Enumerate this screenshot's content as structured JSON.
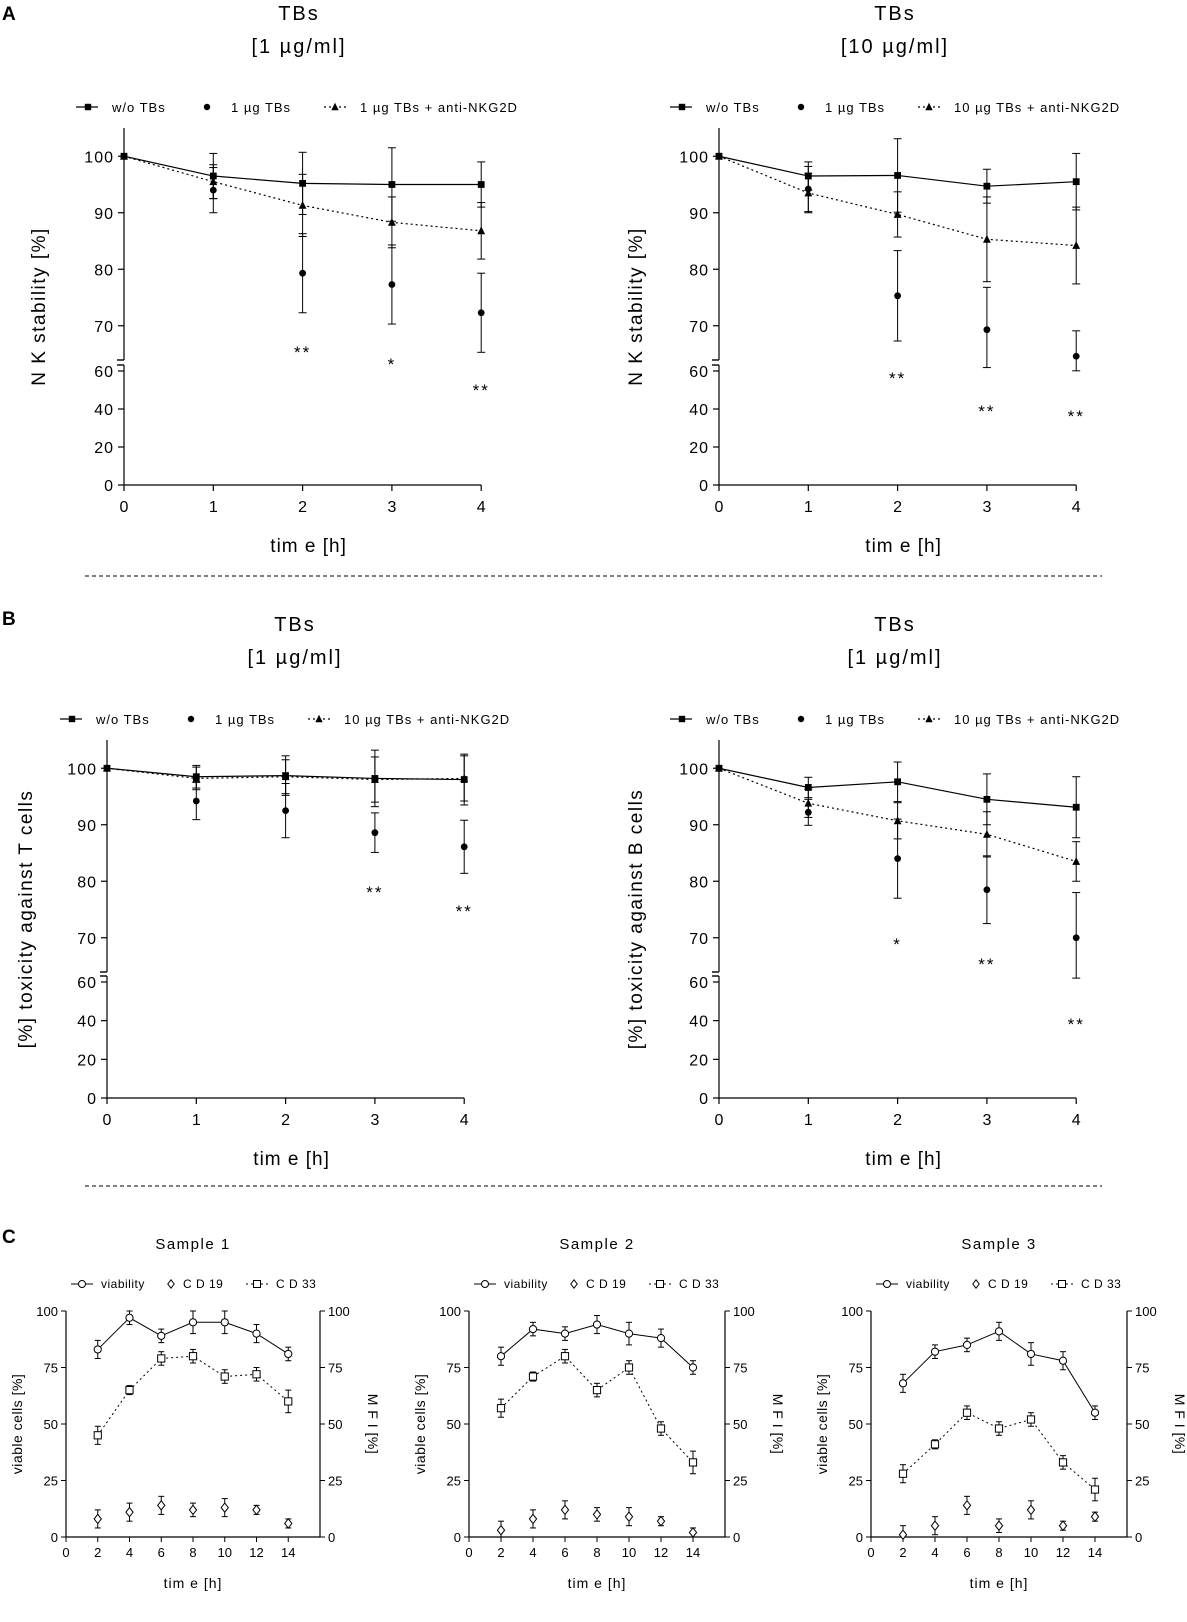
{
  "figure": {
    "panel_labels": [
      "A",
      "B",
      "C"
    ]
  },
  "chart_data": [
    {
      "id": "A1",
      "type": "line",
      "title": [
        "TBs",
        "[1 µg/ml]"
      ],
      "xlabel": "tim e [h]",
      "ylabel": "N K stability [%]",
      "x": [
        0,
        1,
        2,
        3,
        4
      ],
      "x_ticks": [
        "0",
        "1",
        "2",
        "3",
        "4"
      ],
      "y_ticks_upper": [
        "100",
        "90",
        "80",
        "70"
      ],
      "y_ticks_lower": [
        "60",
        "40",
        "20",
        "0"
      ],
      "ylim_upper": [
        65,
        105
      ],
      "ylim_lower": [
        0,
        60
      ],
      "legend": [
        "w/o TBs",
        "1 µg TBs",
        "1 µg TBs + anti-NKG2D"
      ],
      "series": [
        {
          "name": "w/o TBs",
          "marker": "square",
          "line": "solid",
          "values": [
            100,
            96.5,
            95.2,
            95,
            95
          ],
          "errors": [
            0,
            4,
            5.5,
            6.5,
            4
          ]
        },
        {
          "name": "1 µg TBs",
          "marker": "circle",
          "line": "none",
          "values": [
            100,
            94,
            79.3,
            77.3,
            72.3
          ],
          "errors": [
            0,
            4,
            7,
            7,
            7
          ]
        },
        {
          "name": "1 µg TBs + anti-NKG2D",
          "marker": "triangle",
          "line": "dotted",
          "values": [
            100,
            95.5,
            91.3,
            88.3,
            86.8
          ],
          "errors": [
            0,
            3,
            5.5,
            4.5,
            5
          ]
        }
      ],
      "annotations": [
        {
          "x": 2,
          "text": "**"
        },
        {
          "x": 3,
          "text": "*"
        },
        {
          "x": 4,
          "text": "**"
        }
      ]
    },
    {
      "id": "A2",
      "type": "line",
      "title": [
        "TBs",
        "[10 µg/ml]"
      ],
      "xlabel": "tim e [h]",
      "ylabel": "N K stability [%]",
      "x": [
        0,
        1,
        2,
        3,
        4
      ],
      "x_ticks": [
        "0",
        "1",
        "2",
        "3",
        "4"
      ],
      "y_ticks_upper": [
        "100",
        "90",
        "80",
        "70"
      ],
      "y_ticks_lower": [
        "60",
        "40",
        "20",
        "0"
      ],
      "ylim_upper": [
        65,
        105
      ],
      "ylim_lower": [
        0,
        60
      ],
      "legend": [
        "w/o TBs",
        "1 µg TBs",
        "10 µg TBs + anti-NKG2D"
      ],
      "series": [
        {
          "name": "w/o TBs",
          "marker": "square",
          "line": "solid",
          "values": [
            100,
            96.5,
            96.6,
            94.7,
            95.5
          ],
          "errors": [
            0,
            2.5,
            6.5,
            3,
            5
          ]
        },
        {
          "name": "1 µg TBs",
          "marker": "circle",
          "line": "none",
          "values": [
            100,
            94.2,
            75.3,
            69.3,
            64.6
          ],
          "errors": [
            0,
            4,
            8,
            7.5,
            4.5
          ]
        },
        {
          "name": "10 µg TBs + anti-NKG2D",
          "marker": "triangle",
          "line": "dotted",
          "values": [
            100,
            93.5,
            89.7,
            85.3,
            84.2
          ],
          "errors": [
            0,
            3.5,
            4,
            7.5,
            6.8
          ]
        }
      ],
      "annotations": [
        {
          "x": 2,
          "text": "**"
        },
        {
          "x": 3,
          "text": "**"
        },
        {
          "x": 4,
          "text": "**"
        }
      ]
    },
    {
      "id": "B1",
      "type": "line",
      "title": [
        "TBs",
        "[1 µg/ml]"
      ],
      "xlabel": "tim e [h]",
      "ylabel": "[%] toxicity against T cells",
      "x": [
        0,
        1,
        2,
        3,
        4
      ],
      "x_ticks": [
        "0",
        "1",
        "2",
        "3",
        "4"
      ],
      "y_ticks_upper": [
        "100",
        "90",
        "80",
        "70"
      ],
      "y_ticks_lower": [
        "60",
        "40",
        "20",
        "0"
      ],
      "ylim_upper": [
        65,
        105
      ],
      "ylim_lower": [
        0,
        60
      ],
      "legend": [
        "w/o TBs",
        "1 µg TBs",
        "10 µg TBs + anti-NKG2D"
      ],
      "series": [
        {
          "name": "w/o TBs",
          "marker": "square",
          "line": "solid",
          "values": [
            100,
            98.5,
            98.7,
            98.2,
            98
          ],
          "errors": [
            0,
            2,
            3.5,
            5,
            4.5
          ]
        },
        {
          "name": "1 µg TBs",
          "marker": "circle",
          "line": "none",
          "values": [
            100,
            94.2,
            92.5,
            88.6,
            86.1
          ],
          "errors": [
            0,
            3.3,
            4.8,
            3.5,
            4.7
          ]
        },
        {
          "name": "10 µg TBs + anti-NKG2D",
          "marker": "triangle",
          "line": "dotted",
          "values": [
            100,
            98.2,
            98.5,
            98,
            98.2
          ],
          "errors": [
            0,
            2,
            3,
            4,
            4
          ]
        }
      ],
      "annotations": [
        {
          "x": 3,
          "text": "**"
        },
        {
          "x": 4,
          "text": "**"
        }
      ]
    },
    {
      "id": "B2",
      "type": "line",
      "title": [
        "TBs",
        "[1 µg/ml]"
      ],
      "xlabel": "tim e [h]",
      "ylabel": "[%] toxicity against B cells",
      "x": [
        0,
        1,
        2,
        3,
        4
      ],
      "x_ticks": [
        "0",
        "1",
        "2",
        "3",
        "4"
      ],
      "y_ticks_upper": [
        "100",
        "90",
        "80",
        "70"
      ],
      "y_ticks_lower": [
        "60",
        "40",
        "20",
        "0"
      ],
      "ylim_upper": [
        65,
        105
      ],
      "ylim_lower": [
        0,
        60
      ],
      "legend": [
        "w/o TBs",
        "1 µg TBs",
        "10 µg TBs + anti-NKG2D"
      ],
      "series": [
        {
          "name": "w/o TBs",
          "marker": "square",
          "line": "solid",
          "values": [
            100,
            96.6,
            97.6,
            94.5,
            93.1
          ],
          "errors": [
            0,
            1.8,
            3.5,
            4.5,
            5.4
          ]
        },
        {
          "name": "1 µg TBs",
          "marker": "circle",
          "line": "none",
          "values": [
            100,
            92.2,
            84,
            78.5,
            70
          ],
          "errors": [
            0,
            2.3,
            7,
            6,
            8
          ]
        },
        {
          "name": "10 µg TBs + anti-NKG2D",
          "marker": "triangle",
          "line": "dotted",
          "values": [
            100,
            93.8,
            90.7,
            88.3,
            83.5
          ],
          "errors": [
            0,
            2.5,
            3.2,
            4,
            3.5
          ]
        }
      ],
      "annotations": [
        {
          "x": 2,
          "text": "*"
        },
        {
          "x": 3,
          "text": "**"
        },
        {
          "x": 4,
          "text": "**"
        }
      ]
    },
    {
      "id": "C1",
      "type": "line",
      "title": "Sample 1",
      "xlabel": "tim e [h]",
      "ylabel_left": "viable cells [%]",
      "ylabel_right": "M F I [%]",
      "x": [
        2,
        4,
        6,
        8,
        10,
        12,
        14
      ],
      "x_ticks": [
        "0",
        "2",
        "4",
        "6",
        "8",
        "10",
        "12",
        "14"
      ],
      "y_ticks": [
        "0",
        "25",
        "50",
        "75",
        "100"
      ],
      "xlim": [
        0,
        16
      ],
      "ylim": [
        0,
        100
      ],
      "legend": [
        "viability",
        "C D 19",
        "C D 33"
      ],
      "series": [
        {
          "name": "viability",
          "marker": "circle-open",
          "line": "solid",
          "values": [
            83,
            97,
            89,
            95,
            95,
            90,
            81
          ],
          "errors": [
            4,
            3,
            3,
            5,
            5,
            4,
            3
          ]
        },
        {
          "name": "C D 19",
          "marker": "diamond-open",
          "line": "none",
          "values": [
            8,
            11,
            14,
            12,
            13,
            12,
            6
          ],
          "errors": [
            4,
            4,
            4,
            3,
            4,
            2,
            2
          ]
        },
        {
          "name": "C D 33",
          "marker": "square-open",
          "line": "dotted",
          "values": [
            45,
            65,
            79,
            80,
            71,
            72,
            60
          ],
          "errors": [
            4,
            2,
            3,
            3,
            3,
            3,
            5
          ]
        }
      ]
    },
    {
      "id": "C2",
      "type": "line",
      "title": "Sample 2",
      "xlabel": "tim e [h]",
      "ylabel_left": "viable cells [%]",
      "ylabel_right": "M F I [%]",
      "x": [
        2,
        4,
        6,
        8,
        10,
        12,
        14
      ],
      "x_ticks": [
        "0",
        "2",
        "4",
        "6",
        "8",
        "10",
        "12",
        "14"
      ],
      "y_ticks": [
        "0",
        "25",
        "50",
        "75",
        "100"
      ],
      "xlim": [
        0,
        16
      ],
      "ylim": [
        0,
        100
      ],
      "legend": [
        "viability",
        "C D 19",
        "C D 33"
      ],
      "series": [
        {
          "name": "viability",
          "marker": "circle-open",
          "line": "solid",
          "values": [
            80,
            92,
            90,
            94,
            90,
            88,
            75
          ],
          "errors": [
            4,
            3,
            3,
            4,
            5,
            4,
            3
          ]
        },
        {
          "name": "C D 19",
          "marker": "diamond-open",
          "line": "none",
          "values": [
            3,
            8,
            12,
            10,
            9,
            7,
            2
          ],
          "errors": [
            4,
            4,
            4,
            3,
            4,
            2,
            2
          ]
        },
        {
          "name": "C D 33",
          "marker": "square-open",
          "line": "dotted",
          "values": [
            57,
            71,
            80,
            65,
            75,
            48,
            33
          ],
          "errors": [
            4,
            2,
            3,
            3,
            3,
            3,
            5
          ]
        }
      ]
    },
    {
      "id": "C3",
      "type": "line",
      "title": "Sample 3",
      "xlabel": "tim e [h]",
      "ylabel_left": "viable cells [%]",
      "ylabel_right": "M F I [%]",
      "x": [
        2,
        4,
        6,
        8,
        10,
        12,
        14
      ],
      "x_ticks": [
        "0",
        "2",
        "4",
        "6",
        "8",
        "10",
        "12",
        "14"
      ],
      "y_ticks": [
        "0",
        "25",
        "50",
        "75",
        "100"
      ],
      "xlim": [
        0,
        16
      ],
      "ylim": [
        0,
        100
      ],
      "legend": [
        "viability",
        "C D 19",
        "C D 33"
      ],
      "series": [
        {
          "name": "viability",
          "marker": "circle-open",
          "line": "solid",
          "values": [
            68,
            82,
            85,
            91,
            81,
            78,
            55
          ],
          "errors": [
            4,
            3,
            3,
            4,
            5,
            4,
            3
          ]
        },
        {
          "name": "C D 19",
          "marker": "diamond-open",
          "line": "none",
          "values": [
            1,
            5,
            14,
            5,
            12,
            5,
            9
          ],
          "errors": [
            4,
            4,
            4,
            3,
            4,
            2,
            2
          ]
        },
        {
          "name": "C D 33",
          "marker": "square-open",
          "line": "dotted",
          "values": [
            28,
            41,
            55,
            48,
            52,
            33,
            21
          ],
          "errors": [
            4,
            2,
            3,
            3,
            3,
            3,
            5
          ]
        }
      ]
    }
  ]
}
